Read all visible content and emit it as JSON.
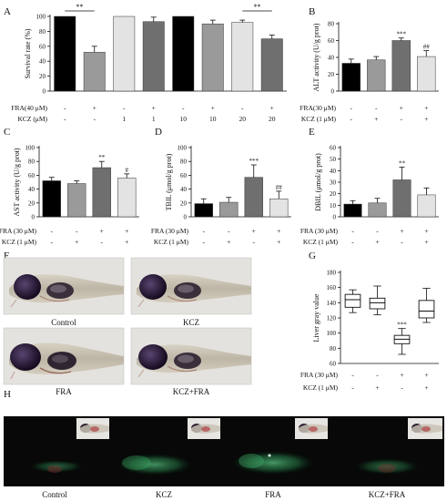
{
  "figure": {
    "panel_letters": [
      "A",
      "B",
      "C",
      "D",
      "E",
      "F",
      "G",
      "H"
    ],
    "photo_labels_f": [
      "Control",
      "KCZ",
      "FRA",
      "KCZ+FRA"
    ],
    "photo_labels_h": [
      "Control",
      "KCZ",
      "FRA",
      "KCZ+FRA"
    ],
    "sig_color": "#111111"
  },
  "chart_data": [
    {
      "id": "A",
      "type": "bar",
      "ylabel": "Survival rate (%)",
      "ylim": [
        0,
        100
      ],
      "yticks": [
        0,
        20,
        40,
        60,
        80,
        100
      ],
      "row_labels": [
        "FRA(40 μM)",
        "KCZ (μM)"
      ],
      "columns": [
        {
          "value": 100,
          "err": 0,
          "color": "#000000",
          "fra": "-",
          "kcz": "-",
          "sig": ""
        },
        {
          "value": 52,
          "err": 8,
          "color": "#9a9a9a",
          "fra": "+",
          "kcz": "-",
          "sig": ""
        },
        {
          "value": 100,
          "err": 0,
          "color": "#e3e3e3",
          "fra": "-",
          "kcz": "1",
          "sig": ""
        },
        {
          "value": 93,
          "err": 6,
          "color": "#6f6f6f",
          "fra": "+",
          "kcz": "1",
          "sig": ""
        },
        {
          "value": 100,
          "err": 0,
          "color": "#000000",
          "fra": "-",
          "kcz": "10",
          "sig": ""
        },
        {
          "value": 90,
          "err": 5,
          "color": "#9a9a9a",
          "fra": "+",
          "kcz": "10",
          "sig": ""
        },
        {
          "value": 92,
          "err": 3,
          "color": "#e3e3e3",
          "fra": "-",
          "kcz": "20",
          "sig": ""
        },
        {
          "value": 70,
          "err": 5,
          "color": "#6f6f6f",
          "fra": "+",
          "kcz": "20",
          "sig": ""
        }
      ],
      "brackets": [
        {
          "from": 0,
          "to": 1,
          "label": "**"
        },
        {
          "from": 6,
          "to": 7,
          "label": "**"
        }
      ]
    },
    {
      "id": "B",
      "type": "bar",
      "ylabel": "ALT activity (U/g prot)",
      "ylim": [
        0,
        80
      ],
      "yticks": [
        0,
        20,
        40,
        60,
        80
      ],
      "row_labels": [
        "FRA(30 μM)",
        "KCZ (1 μM)"
      ],
      "columns": [
        {
          "value": 33,
          "err": 5,
          "color": "#000000",
          "fra": "-",
          "kcz": "-",
          "sig": ""
        },
        {
          "value": 37,
          "err": 4,
          "color": "#9a9a9a",
          "fra": "-",
          "kcz": "+",
          "sig": ""
        },
        {
          "value": 60,
          "err": 3,
          "color": "#6f6f6f",
          "fra": "+",
          "kcz": "-",
          "sig": "***"
        },
        {
          "value": 41,
          "err": 7,
          "color": "#e3e3e3",
          "fra": "+",
          "kcz": "+",
          "sig": "##"
        }
      ]
    },
    {
      "id": "C",
      "type": "bar",
      "ylabel": "AST activity (U/g prot)",
      "ylim": [
        0,
        100
      ],
      "yticks": [
        0,
        20,
        40,
        60,
        80,
        100
      ],
      "row_labels": [
        "FRA (30 μM)",
        "KCZ (1 μM)"
      ],
      "columns": [
        {
          "value": 52,
          "err": 5,
          "color": "#000000",
          "fra": "-",
          "kcz": "-",
          "sig": ""
        },
        {
          "value": 48,
          "err": 4,
          "color": "#9a9a9a",
          "fra": "-",
          "kcz": "+",
          "sig": ""
        },
        {
          "value": 71,
          "err": 9,
          "color": "#6f6f6f",
          "fra": "+",
          "kcz": "-",
          "sig": "**"
        },
        {
          "value": 56,
          "err": 6,
          "color": "#e3e3e3",
          "fra": "+",
          "kcz": "+",
          "sig": "#"
        }
      ]
    },
    {
      "id": "D",
      "type": "bar",
      "ylabel": "TBIL (μmol/g prot)",
      "ylim": [
        0,
        100
      ],
      "yticks": [
        0,
        20,
        40,
        60,
        80,
        100
      ],
      "row_labels": [
        "FRA (30 μM)",
        "KCZ (1 μM)"
      ],
      "columns": [
        {
          "value": 19,
          "err": 7,
          "color": "#000000",
          "fra": "-",
          "kcz": "-",
          "sig": ""
        },
        {
          "value": 21,
          "err": 7,
          "color": "#9a9a9a",
          "fra": "-",
          "kcz": "+",
          "sig": ""
        },
        {
          "value": 57,
          "err": 18,
          "color": "#6f6f6f",
          "fra": "+",
          "kcz": "-",
          "sig": "***"
        },
        {
          "value": 26,
          "err": 11,
          "color": "#e3e3e3",
          "fra": "+",
          "kcz": "+",
          "sig": "##"
        }
      ]
    },
    {
      "id": "E",
      "type": "bar",
      "ylabel": "DBIL (μmol/g prot)",
      "ylim": [
        0,
        60
      ],
      "yticks": [
        0,
        10,
        20,
        30,
        40,
        50,
        60
      ],
      "row_labels": [
        "FRA (30 μM)",
        "KCZ (1 μM)"
      ],
      "columns": [
        {
          "value": 11,
          "err": 3,
          "color": "#000000",
          "fra": "-",
          "kcz": "-",
          "sig": ""
        },
        {
          "value": 12,
          "err": 4,
          "color": "#9a9a9a",
          "fra": "-",
          "kcz": "+",
          "sig": ""
        },
        {
          "value": 32,
          "err": 11,
          "color": "#6f6f6f",
          "fra": "+",
          "kcz": "-",
          "sig": "**"
        },
        {
          "value": 19,
          "err": 6,
          "color": "#e3e3e3",
          "fra": "+",
          "kcz": "+",
          "sig": ""
        }
      ]
    },
    {
      "id": "G",
      "type": "box",
      "ylabel": "Liver gray value",
      "ylim": [
        60,
        180
      ],
      "yticks": [
        60,
        80,
        100,
        120,
        140,
        160,
        180
      ],
      "row_labels": [
        "FRA (30 μM)",
        "KCZ (1 μM)"
      ],
      "boxes": [
        {
          "min": 127,
          "q1": 134,
          "median": 144,
          "q3": 151,
          "max": 157,
          "fra": "-",
          "kcz": "-",
          "sig": ""
        },
        {
          "min": 124,
          "q1": 132,
          "median": 140,
          "q3": 146,
          "max": 162,
          "fra": "-",
          "kcz": "+",
          "sig": ""
        },
        {
          "min": 72,
          "q1": 86,
          "median": 92,
          "q3": 97,
          "max": 106,
          "fra": "+",
          "kcz": "-",
          "sig": "***"
        },
        {
          "min": 114,
          "q1": 120,
          "median": 129,
          "q3": 143,
          "max": 159,
          "fra": "+",
          "kcz": "+",
          "sig": ""
        }
      ]
    }
  ]
}
